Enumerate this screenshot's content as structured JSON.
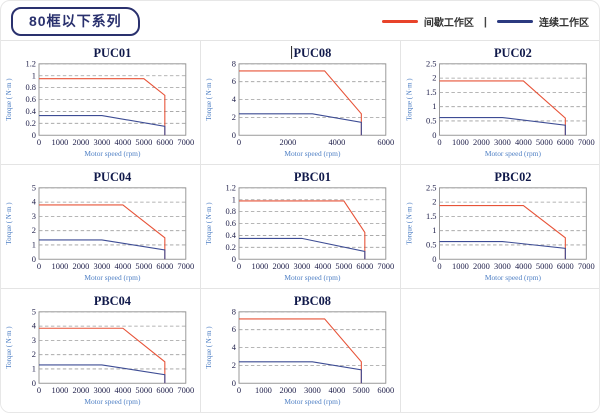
{
  "header": {
    "title": "80框以下系列",
    "legend": {
      "separator": "|",
      "items": [
        {
          "label": "间歇工作区",
          "color": "#e8432a"
        },
        {
          "label": "连续工作区",
          "color": "#2b3a80"
        }
      ]
    }
  },
  "styles": {
    "curve_red": "#e75338",
    "curve_blue": "#3d4c94",
    "grid_color": "#9e9e9e",
    "plot_border": "#8f8f8f",
    "tick_text": "#23234d",
    "axis_label": "#4e7fc4",
    "chart_title": "#10194a"
  },
  "chart_data": [
    {
      "type": "line",
      "title": "PUC01",
      "title_caret": false,
      "xlabel": "Motor speed (rpm)",
      "ylabel": "Torque ( N·m )",
      "xlim": [
        0,
        7000
      ],
      "xticks": [
        0,
        1000,
        2000,
        3000,
        4000,
        5000,
        6000,
        7000
      ],
      "ylim": [
        0,
        1.2
      ],
      "yticks": [
        0,
        0.2,
        0.4,
        0.6,
        0.8,
        1,
        1.2
      ],
      "series": [
        {
          "name": "间歇工作区",
          "color": "#e75338",
          "points": [
            [
              0,
              0.95
            ],
            [
              5000,
              0.95
            ],
            [
              6000,
              0.67
            ],
            [
              6000,
              0
            ]
          ]
        },
        {
          "name": "连续工作区",
          "color": "#3d4c94",
          "points": [
            [
              0,
              0.33
            ],
            [
              3000,
              0.33
            ],
            [
              6000,
              0.15
            ],
            [
              6000,
              0
            ]
          ]
        }
      ]
    },
    {
      "type": "line",
      "title": "PUC08",
      "title_caret": true,
      "xlabel": "Motor speed (rpm)",
      "ylabel": "Torque ( N·m )",
      "xlim": [
        0,
        6000
      ],
      "xticks": [
        0,
        2000,
        4000,
        6000
      ],
      "ylim": [
        0,
        8
      ],
      "yticks": [
        0,
        2,
        4,
        6,
        8
      ],
      "series": [
        {
          "name": "间歇工作区",
          "color": "#e75338",
          "points": [
            [
              0,
              7.2
            ],
            [
              3500,
              7.2
            ],
            [
              5000,
              2.4
            ],
            [
              5000,
              0
            ]
          ]
        },
        {
          "name": "连续工作区",
          "color": "#3d4c94",
          "points": [
            [
              0,
              2.4
            ],
            [
              3000,
              2.4
            ],
            [
              5000,
              1.45
            ],
            [
              5000,
              0
            ]
          ]
        }
      ]
    },
    {
      "type": "line",
      "title": "PUC02",
      "title_caret": false,
      "xlabel": "Motor speed (rpm)",
      "ylabel": "Torque ( N·m )",
      "xlim": [
        0,
        7000
      ],
      "xticks": [
        0,
        1000,
        2000,
        3000,
        4000,
        5000,
        6000,
        7000
      ],
      "ylim": [
        0,
        2.5
      ],
      "yticks": [
        0,
        0.5,
        1,
        1.5,
        2,
        2.5
      ],
      "series": [
        {
          "name": "间歇工作区",
          "color": "#e75338",
          "points": [
            [
              0,
              1.9
            ],
            [
              4000,
              1.9
            ],
            [
              6000,
              0.6
            ],
            [
              6000,
              0
            ]
          ]
        },
        {
          "name": "连续工作区",
          "color": "#3d4c94",
          "points": [
            [
              0,
              0.62
            ],
            [
              3000,
              0.62
            ],
            [
              6000,
              0.35
            ],
            [
              6000,
              0
            ]
          ]
        }
      ]
    },
    {
      "type": "line",
      "title": "PUC04",
      "title_caret": false,
      "xlabel": "Motor speed (rpm)",
      "ylabel": "Torque ( N·m )",
      "xlim": [
        0,
        7000
      ],
      "xticks": [
        0,
        1000,
        2000,
        3000,
        4000,
        5000,
        6000,
        7000
      ],
      "ylim": [
        0,
        5
      ],
      "yticks": [
        0,
        1,
        2,
        3,
        4,
        5
      ],
      "series": [
        {
          "name": "间歇工作区",
          "color": "#e75338",
          "points": [
            [
              0,
              3.8
            ],
            [
              4000,
              3.8
            ],
            [
              6000,
              1.5
            ],
            [
              6000,
              0
            ]
          ]
        },
        {
          "name": "连续工作区",
          "color": "#3d4c94",
          "points": [
            [
              0,
              1.35
            ],
            [
              3000,
              1.35
            ],
            [
              6000,
              0.65
            ],
            [
              6000,
              0
            ]
          ]
        }
      ]
    },
    {
      "type": "line",
      "title": "PBC01",
      "title_caret": false,
      "xlabel": "Motor speed (rpm)",
      "ylabel": "Torque ( N·m )",
      "xlim": [
        0,
        7000
      ],
      "xticks": [
        0,
        1000,
        2000,
        3000,
        4000,
        5000,
        6000,
        7000
      ],
      "ylim": [
        0,
        1.2
      ],
      "yticks": [
        0,
        0.2,
        0.4,
        0.6,
        0.8,
        1,
        1.2
      ],
      "series": [
        {
          "name": "间歇工作区",
          "color": "#e75338",
          "points": [
            [
              0,
              0.98
            ],
            [
              5000,
              0.98
            ],
            [
              6000,
              0.45
            ],
            [
              6000,
              0
            ]
          ]
        },
        {
          "name": "连续工作区",
          "color": "#3d4c94",
          "points": [
            [
              0,
              0.35
            ],
            [
              3000,
              0.35
            ],
            [
              6000,
              0.13
            ],
            [
              6000,
              0
            ]
          ]
        }
      ]
    },
    {
      "type": "line",
      "title": "PBC02",
      "title_caret": false,
      "xlabel": "Motor speed (rpm)",
      "ylabel": "Torque ( N·m )",
      "xlim": [
        0,
        7000
      ],
      "xticks": [
        0,
        1000,
        2000,
        3000,
        4000,
        5000,
        6000,
        7000
      ],
      "ylim": [
        0,
        2.5
      ],
      "yticks": [
        0,
        0.5,
        1,
        1.5,
        2,
        2.5
      ],
      "series": [
        {
          "name": "间歇工作区",
          "color": "#e75338",
          "points": [
            [
              0,
              1.88
            ],
            [
              4000,
              1.88
            ],
            [
              6000,
              0.75
            ],
            [
              6000,
              0
            ]
          ]
        },
        {
          "name": "连续工作区",
          "color": "#3d4c94",
          "points": [
            [
              0,
              0.62
            ],
            [
              3000,
              0.62
            ],
            [
              6000,
              0.38
            ],
            [
              6000,
              0
            ]
          ]
        }
      ]
    },
    {
      "type": "line",
      "title": "PBC04",
      "title_caret": false,
      "xlabel": "Motor speed (rpm)",
      "ylabel": "Torque ( N·m )",
      "xlim": [
        0,
        7000
      ],
      "xticks": [
        0,
        1000,
        2000,
        3000,
        4000,
        5000,
        6000,
        7000
      ],
      "ylim": [
        0,
        5
      ],
      "yticks": [
        0,
        1,
        2,
        3,
        4,
        5
      ],
      "series": [
        {
          "name": "间歇工作区",
          "color": "#e75338",
          "points": [
            [
              0,
              3.85
            ],
            [
              4000,
              3.85
            ],
            [
              6000,
              1.5
            ],
            [
              6000,
              0
            ]
          ]
        },
        {
          "name": "连续工作区",
          "color": "#3d4c94",
          "points": [
            [
              0,
              1.28
            ],
            [
              3000,
              1.28
            ],
            [
              6000,
              0.6
            ],
            [
              6000,
              0
            ]
          ]
        }
      ]
    },
    {
      "type": "line",
      "title": "PBC08",
      "title_caret": false,
      "xlabel": "Motor speed (rpm)",
      "ylabel": "Torque ( N·m )",
      "xlim": [
        0,
        6000
      ],
      "xticks": [
        0,
        1000,
        2000,
        3000,
        4000,
        5000,
        6000
      ],
      "ylim": [
        0,
        8
      ],
      "yticks": [
        0,
        2,
        4,
        6,
        8
      ],
      "series": [
        {
          "name": "间歇工作区",
          "color": "#e75338",
          "points": [
            [
              0,
              7.2
            ],
            [
              3500,
              7.2
            ],
            [
              5000,
              2.4
            ],
            [
              5000,
              0
            ]
          ]
        },
        {
          "name": "连续工作区",
          "color": "#3d4c94",
          "points": [
            [
              0,
              2.4
            ],
            [
              3000,
              2.4
            ],
            [
              5000,
              1.5
            ],
            [
              5000,
              0
            ]
          ]
        }
      ]
    }
  ]
}
